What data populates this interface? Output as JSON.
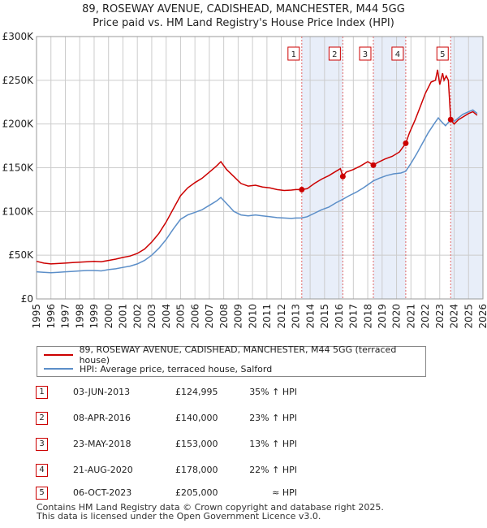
{
  "title": "89, ROSEWAY AVENUE, CADISHEAD, MANCHESTER, M44 5GG",
  "subtitle": "Price paid vs. HM Land Registry's House Price Index (HPI)",
  "colors": {
    "property": "#cc0000",
    "hpi": "#5b8ec8",
    "shade": "#e8eef9",
    "grid": "#cccccc",
    "marker_line": "#e06666"
  },
  "chart_data": {
    "type": "line",
    "xlim": [
      1995,
      2026
    ],
    "ylim": [
      0,
      300000
    ],
    "x_ticks": [
      1995,
      1996,
      1997,
      1998,
      1999,
      2000,
      2001,
      2002,
      2003,
      2004,
      2005,
      2006,
      2007,
      2008,
      2009,
      2010,
      2011,
      2012,
      2013,
      2014,
      2015,
      2016,
      2017,
      2018,
      2019,
      2020,
      2021,
      2022,
      2023,
      2024,
      2025,
      2026
    ],
    "x_tick_labels": [
      "1995",
      "1996",
      "1997",
      "1998",
      "1999",
      "2000",
      "2001",
      "2002",
      "2003",
      "2004",
      "2005",
      "2006",
      "2007",
      "2008",
      "2009",
      "2010",
      "2011",
      "2012",
      "2013",
      "2014",
      "2015",
      "2016",
      "2017",
      "2018",
      "2019",
      "2020",
      "2021",
      "2022",
      "2023",
      "2024",
      "2025",
      "2026"
    ],
    "y_ticks": [
      0,
      50000,
      100000,
      150000,
      200000,
      250000,
      300000
    ],
    "y_tick_labels": [
      "£0",
      "£50K",
      "£100K",
      "£150K",
      "£200K",
      "£250K",
      "£300K"
    ],
    "series": [
      {
        "name": "89, ROSEWAY AVENUE, CADISHEAD, MANCHESTER, M44 5GG (terraced house)",
        "color": "#cc0000",
        "points": [
          [
            1995.0,
            43000
          ],
          [
            1995.5,
            41000
          ],
          [
            1996.0,
            40000
          ],
          [
            1996.5,
            40500
          ],
          [
            1997.0,
            41000
          ],
          [
            1997.5,
            41500
          ],
          [
            1998.0,
            42000
          ],
          [
            1998.5,
            42500
          ],
          [
            1999.0,
            43000
          ],
          [
            1999.5,
            42500
          ],
          [
            2000.0,
            44000
          ],
          [
            2000.5,
            45500
          ],
          [
            2001.0,
            47500
          ],
          [
            2001.5,
            49000
          ],
          [
            2002.0,
            52000
          ],
          [
            2002.5,
            57000
          ],
          [
            2003.0,
            65000
          ],
          [
            2003.5,
            75000
          ],
          [
            2004.0,
            88000
          ],
          [
            2004.5,
            103000
          ],
          [
            2005.0,
            118000
          ],
          [
            2005.5,
            127000
          ],
          [
            2006.0,
            133000
          ],
          [
            2006.5,
            138000
          ],
          [
            2007.0,
            145000
          ],
          [
            2007.5,
            152000
          ],
          [
            2007.8,
            157000
          ],
          [
            2008.2,
            148000
          ],
          [
            2008.7,
            140000
          ],
          [
            2009.2,
            132000
          ],
          [
            2009.7,
            129000
          ],
          [
            2010.2,
            130000
          ],
          [
            2010.7,
            128000
          ],
          [
            2011.2,
            127000
          ],
          [
            2011.7,
            125000
          ],
          [
            2012.2,
            124000
          ],
          [
            2012.7,
            124500
          ],
          [
            2013.0,
            125000
          ],
          [
            2013.42,
            124995
          ],
          [
            2013.8,
            126000
          ],
          [
            2014.3,
            132000
          ],
          [
            2014.8,
            137000
          ],
          [
            2015.3,
            141000
          ],
          [
            2015.8,
            146000
          ],
          [
            2016.1,
            149000
          ],
          [
            2016.27,
            140000
          ],
          [
            2016.5,
            145000
          ],
          [
            2017.0,
            148000
          ],
          [
            2017.5,
            152000
          ],
          [
            2018.0,
            157000
          ],
          [
            2018.39,
            153000
          ],
          [
            2018.7,
            156000
          ],
          [
            2019.2,
            160000
          ],
          [
            2019.7,
            163000
          ],
          [
            2020.2,
            168000
          ],
          [
            2020.64,
            178000
          ],
          [
            2020.9,
            190000
          ],
          [
            2021.3,
            205000
          ],
          [
            2021.7,
            222000
          ],
          [
            2022.0,
            235000
          ],
          [
            2022.4,
            248000
          ],
          [
            2022.7,
            250000
          ],
          [
            2022.85,
            262000
          ],
          [
            2023.0,
            245000
          ],
          [
            2023.2,
            258000
          ],
          [
            2023.3,
            250000
          ],
          [
            2023.45,
            255000
          ],
          [
            2023.6,
            250000
          ],
          [
            2023.76,
            205000
          ],
          [
            2024.0,
            200000
          ],
          [
            2024.3,
            205000
          ],
          [
            2024.6,
            208000
          ],
          [
            2025.0,
            212000
          ],
          [
            2025.3,
            214000
          ],
          [
            2025.6,
            210000
          ]
        ]
      },
      {
        "name": "HPI: Average price, terraced house, Salford",
        "color": "#5b8ec8",
        "points": [
          [
            1995.0,
            31000
          ],
          [
            1995.5,
            30500
          ],
          [
            1996.0,
            30000
          ],
          [
            1996.5,
            30500
          ],
          [
            1997.0,
            31000
          ],
          [
            1997.5,
            31500
          ],
          [
            1998.0,
            32000
          ],
          [
            1998.5,
            32500
          ],
          [
            1999.0,
            32500
          ],
          [
            1999.5,
            32000
          ],
          [
            2000.0,
            33500
          ],
          [
            2000.5,
            34500
          ],
          [
            2001.0,
            36000
          ],
          [
            2001.5,
            37500
          ],
          [
            2002.0,
            40000
          ],
          [
            2002.5,
            44000
          ],
          [
            2003.0,
            50000
          ],
          [
            2003.5,
            58000
          ],
          [
            2004.0,
            68000
          ],
          [
            2004.5,
            80000
          ],
          [
            2005.0,
            91000
          ],
          [
            2005.5,
            96000
          ],
          [
            2006.0,
            99000
          ],
          [
            2006.5,
            102000
          ],
          [
            2007.0,
            107000
          ],
          [
            2007.5,
            112000
          ],
          [
            2007.8,
            116000
          ],
          [
            2008.2,
            109000
          ],
          [
            2008.7,
            100000
          ],
          [
            2009.2,
            96000
          ],
          [
            2009.7,
            95000
          ],
          [
            2010.2,
            96000
          ],
          [
            2010.7,
            95000
          ],
          [
            2011.2,
            94000
          ],
          [
            2011.7,
            93000
          ],
          [
            2012.2,
            92500
          ],
          [
            2012.7,
            92000
          ],
          [
            2013.0,
            92500
          ],
          [
            2013.42,
            92700
          ],
          [
            2013.8,
            94000
          ],
          [
            2014.3,
            98000
          ],
          [
            2014.8,
            102000
          ],
          [
            2015.3,
            105000
          ],
          [
            2015.8,
            110000
          ],
          [
            2016.27,
            114000
          ],
          [
            2016.7,
            118000
          ],
          [
            2017.2,
            122000
          ],
          [
            2017.7,
            127000
          ],
          [
            2018.39,
            135000
          ],
          [
            2018.8,
            138000
          ],
          [
            2019.3,
            141000
          ],
          [
            2019.8,
            143000
          ],
          [
            2020.3,
            144000
          ],
          [
            2020.64,
            146000
          ],
          [
            2021.0,
            155000
          ],
          [
            2021.4,
            166000
          ],
          [
            2021.8,
            178000
          ],
          [
            2022.2,
            190000
          ],
          [
            2022.6,
            200000
          ],
          [
            2022.9,
            207000
          ],
          [
            2023.1,
            203000
          ],
          [
            2023.4,
            198000
          ],
          [
            2023.76,
            205000
          ],
          [
            2024.0,
            203000
          ],
          [
            2024.3,
            207000
          ],
          [
            2024.6,
            211000
          ],
          [
            2025.0,
            214000
          ],
          [
            2025.3,
            216000
          ],
          [
            2025.6,
            212000
          ]
        ]
      }
    ],
    "markers": [
      {
        "label": "1",
        "x": 2013.42,
        "y": 124995
      },
      {
        "label": "2",
        "x": 2016.27,
        "y": 140000
      },
      {
        "label": "3",
        "x": 2018.39,
        "y": 153000
      },
      {
        "label": "4",
        "x": 2020.64,
        "y": 178000
      },
      {
        "label": "5",
        "x": 2023.76,
        "y": 205000
      }
    ],
    "shaded_ranges": [
      [
        2013.42,
        2016.27
      ],
      [
        2018.39,
        2020.64
      ],
      [
        2023.76,
        2026.0
      ]
    ]
  },
  "legend": {
    "property_label": "89, ROSEWAY AVENUE, CADISHEAD, MANCHESTER, M44 5GG (terraced house)",
    "hpi_label": "HPI: Average price, terraced house, Salford"
  },
  "sales": [
    {
      "num": "1",
      "date": "03-JUN-2013",
      "price": "£124,995",
      "hpi": "35% ↑ HPI"
    },
    {
      "num": "2",
      "date": "08-APR-2016",
      "price": "£140,000",
      "hpi": "23% ↑ HPI"
    },
    {
      "num": "3",
      "date": "23-MAY-2018",
      "price": "£153,000",
      "hpi": "13% ↑ HPI"
    },
    {
      "num": "4",
      "date": "21-AUG-2020",
      "price": "£178,000",
      "hpi": "22% ↑ HPI"
    },
    {
      "num": "5",
      "date": "06-OCT-2023",
      "price": "£205,000",
      "hpi": "≈ HPI"
    }
  ],
  "footer": {
    "line1": "Contains HM Land Registry data © Crown copyright and database right 2025.",
    "line2": "This data is licensed under the Open Government Licence v3.0."
  }
}
